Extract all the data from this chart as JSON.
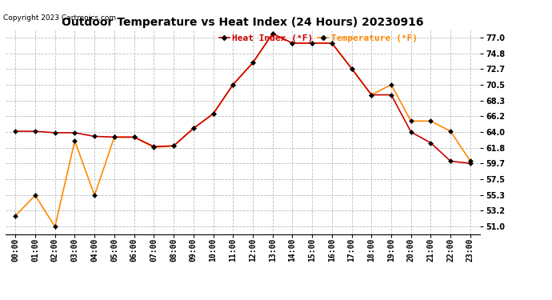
{
  "title": "Outdoor Temperature vs Heat Index (24 Hours) 20230916",
  "copyright": "Copyright 2023 Cartronics.com",
  "legend_heat": "Heat Index (°F)",
  "legend_temp": "Temperature (°F)",
  "heat_color": "#cc0000",
  "temp_color": "#ff8800",
  "background_color": "white",
  "yticks": [
    51.0,
    53.2,
    55.3,
    57.5,
    59.7,
    61.8,
    64.0,
    66.2,
    68.3,
    70.5,
    72.7,
    74.8,
    77.0
  ],
  "hours": [
    0,
    1,
    2,
    3,
    4,
    5,
    6,
    7,
    8,
    9,
    10,
    11,
    12,
    13,
    14,
    15,
    16,
    17,
    18,
    19,
    20,
    21,
    22,
    23
  ],
  "heat_index": [
    64.1,
    64.1,
    63.9,
    63.9,
    63.4,
    63.3,
    63.3,
    62.0,
    62.1,
    64.5,
    66.5,
    70.5,
    73.5,
    77.5,
    76.2,
    76.2,
    76.2,
    72.7,
    69.1,
    69.1,
    64.0,
    62.5,
    60.0,
    59.7
  ],
  "temperature": [
    52.5,
    55.3,
    51.0,
    62.8,
    55.3,
    63.3,
    63.3,
    61.9,
    62.1,
    64.5,
    66.5,
    70.5,
    73.5,
    77.5,
    76.2,
    76.2,
    76.2,
    72.7,
    69.1,
    70.5,
    65.5,
    65.5,
    64.1,
    60.0
  ],
  "grid_color": "#bbbbbb",
  "grid_style": "--",
  "marker": "D",
  "markersize": 3,
  "linewidth": 1.2,
  "title_fontsize": 10,
  "tick_fontsize": 7,
  "copyright_fontsize": 6.5,
  "legend_fontsize": 8
}
